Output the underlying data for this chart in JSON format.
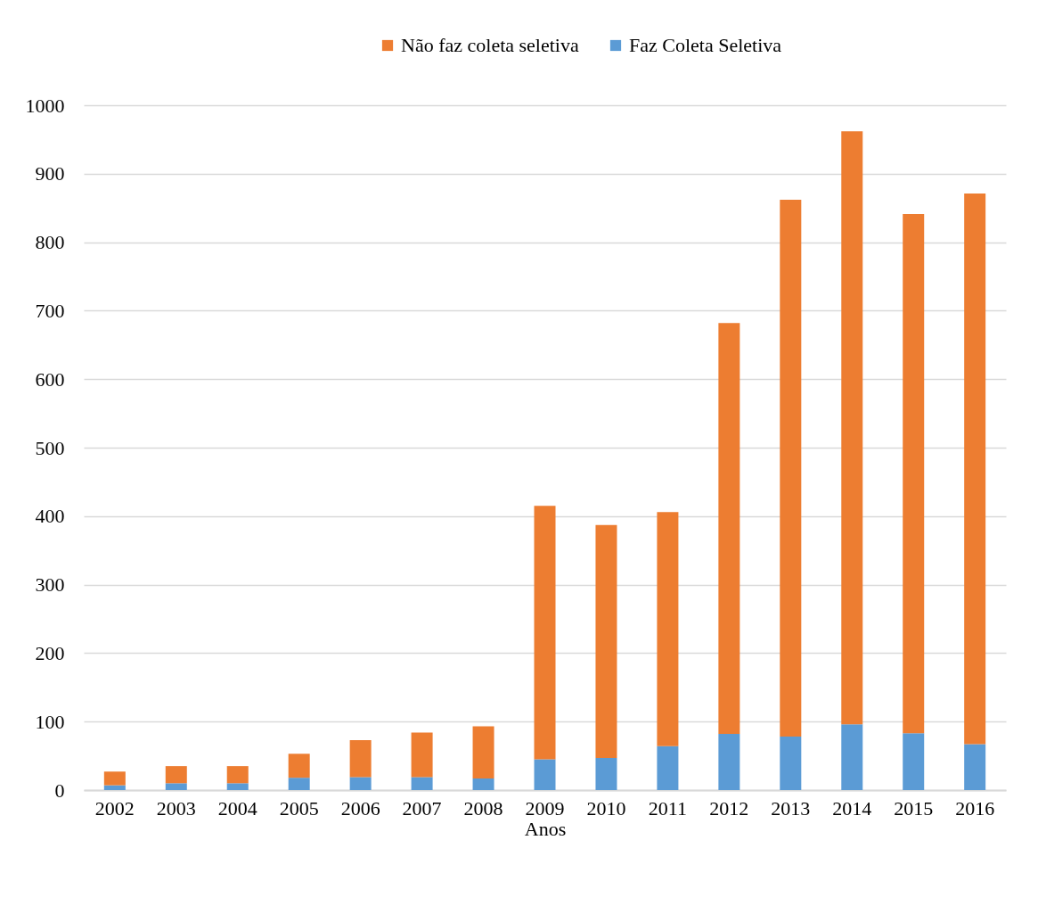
{
  "chart_data": {
    "type": "bar",
    "stacked": true,
    "xlabel": "Anos",
    "categories": [
      "2002",
      "2003",
      "2004",
      "2005",
      "2006",
      "2007",
      "2008",
      "2009",
      "2010",
      "2011",
      "2012",
      "2013",
      "2014",
      "2015",
      "2016"
    ],
    "series": [
      {
        "name": "Faz Coleta Seletiva",
        "color": "#5b9bd5",
        "values": [
          7,
          10,
          10,
          18,
          19,
          19,
          17,
          45,
          47,
          64,
          82,
          78,
          96,
          83,
          67
        ]
      },
      {
        "name": "Não faz coleta seletiva",
        "color": "#ed7d31",
        "values": [
          20,
          25,
          25,
          35,
          54,
          65,
          76,
          370,
          340,
          342,
          600,
          784,
          866,
          758,
          804
        ]
      }
    ],
    "ylim": [
      0,
      1000
    ],
    "yticks": [
      0,
      100,
      200,
      300,
      400,
      500,
      600,
      700,
      800,
      900,
      1000
    ],
    "grid": "y",
    "legend": "top"
  }
}
